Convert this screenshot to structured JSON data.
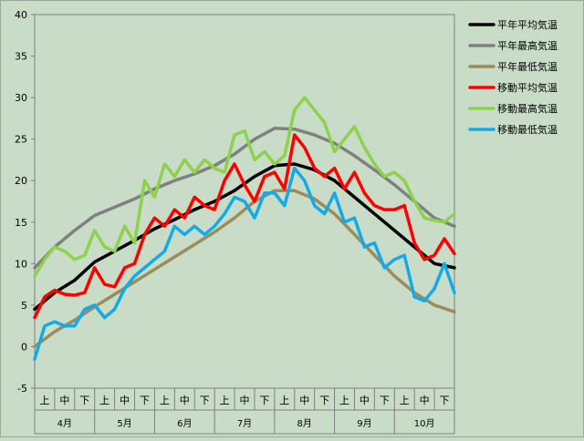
{
  "chart_data": {
    "type": "line",
    "title": "",
    "xlabel": "",
    "ylabel": "",
    "ylim": [
      -5,
      40
    ],
    "yticks": [
      -5,
      0,
      5,
      10,
      15,
      20,
      25,
      30,
      35,
      40
    ],
    "grid": false,
    "legend_position": "top-right",
    "x_periods": [
      "上",
      "中",
      "下",
      "上",
      "中",
      "下",
      "上",
      "中",
      "下",
      "上",
      "中",
      "下",
      "上",
      "中",
      "下",
      "上",
      "中",
      "下",
      "上",
      "中",
      "下"
    ],
    "x_months": [
      "4月",
      "5月",
      "6月",
      "7月",
      "8月",
      "9月",
      "10月"
    ],
    "x_domain": [
      0,
      21
    ],
    "colors": {
      "background": "#c8dcc8",
      "plot_border": "#7f7f7f",
      "normal_avg": "#000000",
      "normal_max": "#808080",
      "normal_min": "#9c8c5c",
      "moving_avg": "#ff0000",
      "moving_max": "#8cd24b",
      "moving_min": "#14aae6"
    },
    "series": [
      {
        "name": "平年平均気温",
        "color": "#000000",
        "x": [
          0,
          1,
          2,
          3,
          4,
          5,
          6,
          7,
          8,
          9,
          10,
          11,
          12,
          13,
          14,
          15,
          16,
          17,
          18,
          19,
          20,
          21
        ],
        "values": [
          4.5,
          6.5,
          8.0,
          10.2,
          11.5,
          12.8,
          14.2,
          15.3,
          16.5,
          17.5,
          18.8,
          20.5,
          21.8,
          22.0,
          21.3,
          20.0,
          18.0,
          16.0,
          14.0,
          12.0,
          10.0,
          9.5
        ]
      },
      {
        "name": "平年最高気温",
        "color": "#808080",
        "x": [
          0,
          1,
          2,
          3,
          4,
          5,
          6,
          7,
          8,
          9,
          10,
          11,
          12,
          13,
          14,
          15,
          16,
          17,
          18,
          19,
          20,
          21
        ],
        "values": [
          9.5,
          12.0,
          14.0,
          15.8,
          16.8,
          17.8,
          19.0,
          20.0,
          20.8,
          21.8,
          23.2,
          25.0,
          26.3,
          26.2,
          25.5,
          24.5,
          23.0,
          21.3,
          19.5,
          17.5,
          15.5,
          14.5
        ]
      },
      {
        "name": "平年最低気温",
        "color": "#9c8c5c",
        "x": [
          0,
          1,
          2,
          3,
          4,
          5,
          6,
          7,
          8,
          9,
          10,
          11,
          12,
          13,
          14,
          15,
          16,
          17,
          18,
          19,
          20,
          21
        ],
        "values": [
          0.0,
          1.8,
          3.2,
          4.8,
          6.3,
          7.8,
          9.3,
          10.8,
          12.3,
          13.8,
          15.5,
          17.5,
          18.8,
          18.8,
          17.8,
          16.0,
          13.5,
          11.0,
          8.5,
          6.5,
          5.0,
          4.2
        ]
      },
      {
        "name": "移動平均気温",
        "color": "#ff0000",
        "x": [
          0,
          0.5,
          1,
          1.5,
          2,
          2.5,
          3,
          3.5,
          4,
          4.5,
          5,
          5.5,
          6,
          6.5,
          7,
          7.5,
          8,
          8.5,
          9,
          9.5,
          10,
          10.5,
          11,
          11.5,
          12,
          12.5,
          13,
          13.5,
          14,
          14.5,
          15,
          15.5,
          16,
          16.5,
          17,
          17.5,
          18,
          18.5,
          19,
          19.5,
          20,
          20.5,
          21
        ],
        "values": [
          3.5,
          6.0,
          6.8,
          6.3,
          6.2,
          6.5,
          9.5,
          7.5,
          7.2,
          9.5,
          10.0,
          13.5,
          15.5,
          14.5,
          16.5,
          15.5,
          18.0,
          17.0,
          16.5,
          20.0,
          22.0,
          19.5,
          17.5,
          20.5,
          21.0,
          19.0,
          25.5,
          24.0,
          21.5,
          20.5,
          21.5,
          19.0,
          21.0,
          18.5,
          17.0,
          16.5,
          16.5,
          17.0,
          12.5,
          10.5,
          11.0,
          13.0,
          11.2
        ]
      },
      {
        "name": "移動最高気温",
        "color": "#8cd24b",
        "x": [
          0,
          0.5,
          1,
          1.5,
          2,
          2.5,
          3,
          3.5,
          4,
          4.5,
          5,
          5.5,
          6,
          6.5,
          7,
          7.5,
          8,
          8.5,
          9,
          9.5,
          10,
          10.5,
          11,
          11.5,
          12,
          12.5,
          13,
          13.5,
          14,
          14.5,
          15,
          15.5,
          16,
          16.5,
          17,
          17.5,
          18,
          18.5,
          19,
          19.5,
          20,
          20.5,
          21
        ],
        "values": [
          8.5,
          10.5,
          12.0,
          11.5,
          10.5,
          11.0,
          14.0,
          12.0,
          11.5,
          14.5,
          12.5,
          20.0,
          18.0,
          22.0,
          20.5,
          22.5,
          21.0,
          22.5,
          21.5,
          21.0,
          25.5,
          26.0,
          22.5,
          23.5,
          22.0,
          23.0,
          28.5,
          30.0,
          28.5,
          27.0,
          23.5,
          25.0,
          26.5,
          24.0,
          22.0,
          20.5,
          21.0,
          20.0,
          17.5,
          15.5,
          15.2,
          15.0,
          16.0
        ]
      },
      {
        "name": "移動最低気温",
        "color": "#14aae6",
        "x": [
          0,
          0.5,
          1,
          1.5,
          2,
          2.5,
          3,
          3.5,
          4,
          4.5,
          5,
          5.5,
          6,
          6.5,
          7,
          7.5,
          8,
          8.5,
          9,
          9.5,
          10,
          10.5,
          11,
          11.5,
          12,
          12.5,
          13,
          13.5,
          14,
          14.5,
          15,
          15.5,
          16,
          16.5,
          17,
          17.5,
          18,
          18.5,
          19,
          19.5,
          20,
          20.5,
          21
        ],
        "values": [
          -1.5,
          2.5,
          3.0,
          2.5,
          2.5,
          4.5,
          5.0,
          3.5,
          4.5,
          7.0,
          8.5,
          9.5,
          10.5,
          11.5,
          14.5,
          13.5,
          14.5,
          13.5,
          14.5,
          16.0,
          18.0,
          17.5,
          15.5,
          18.5,
          18.5,
          17.0,
          21.5,
          20.0,
          17.0,
          16.0,
          18.5,
          15.0,
          15.5,
          12.0,
          12.5,
          9.5,
          10.5,
          11.0,
          6.0,
          5.5,
          7.0,
          10.0,
          6.5
        ]
      }
    ]
  }
}
